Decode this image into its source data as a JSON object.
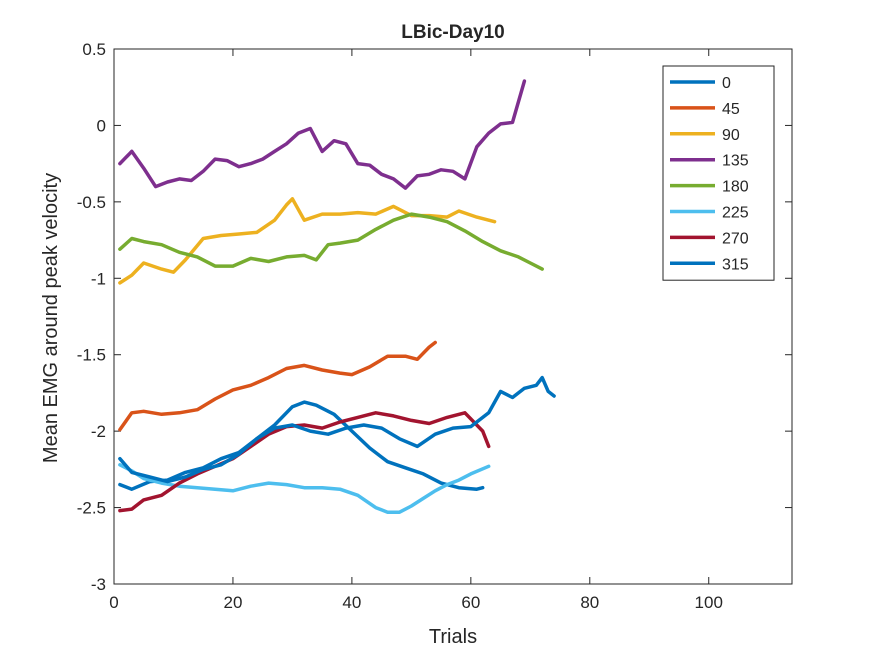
{
  "chart_data": {
    "type": "line",
    "title": "LBic-Day10",
    "xlabel": "Trials",
    "ylabel": "Mean EMG around peak velocity",
    "xlim": [
      0,
      114
    ],
    "ylim": [
      -3,
      0.5
    ],
    "xticks": [
      0,
      20,
      40,
      60,
      80,
      100
    ],
    "yticks": [
      -3,
      -2.5,
      -2,
      -1.5,
      -1,
      -0.5,
      0,
      0.5
    ],
    "xtick_labels": [
      "0",
      "20",
      "40",
      "60",
      "80",
      "100"
    ],
    "ytick_labels": [
      "-3",
      "-2.5",
      "-2",
      "-1.5",
      "-1",
      "-0.5",
      "0",
      "0.5"
    ],
    "grid": false,
    "legend_position": "top-right",
    "series": [
      {
        "name": "0",
        "color": "#0072BD",
        "x": [
          1,
          3,
          6,
          9,
          12,
          15,
          18,
          21,
          24,
          27,
          30,
          32,
          34,
          37,
          40,
          43,
          46,
          49,
          52,
          55,
          58,
          61,
          62
        ],
        "y": [
          -2.35,
          -2.38,
          -2.33,
          -2.32,
          -2.27,
          -2.24,
          -2.18,
          -2.14,
          -2.05,
          -1.96,
          -1.84,
          -1.81,
          -1.83,
          -1.89,
          -2.0,
          -2.11,
          -2.2,
          -2.24,
          -2.28,
          -2.34,
          -2.37,
          -2.38,
          -2.37
        ]
      },
      {
        "name": "45",
        "color": "#D95319",
        "x": [
          1,
          3,
          5,
          8,
          11,
          14,
          17,
          20,
          23,
          26,
          29,
          32,
          35,
          38,
          40,
          43,
          46,
          49,
          51,
          53,
          54
        ],
        "y": [
          -1.99,
          -1.88,
          -1.87,
          -1.89,
          -1.88,
          -1.86,
          -1.79,
          -1.73,
          -1.7,
          -1.65,
          -1.59,
          -1.57,
          -1.6,
          -1.62,
          -1.63,
          -1.58,
          -1.51,
          -1.51,
          -1.53,
          -1.45,
          -1.42
        ]
      },
      {
        "name": "90",
        "color": "#EDB120",
        "x": [
          1,
          3,
          5,
          8,
          10,
          12,
          15,
          18,
          21,
          24,
          27,
          29,
          30,
          32,
          35,
          38,
          41,
          44,
          47,
          50,
          53,
          56,
          58,
          61,
          64
        ],
        "y": [
          -1.03,
          -0.98,
          -0.9,
          -0.94,
          -0.96,
          -0.88,
          -0.74,
          -0.72,
          -0.71,
          -0.7,
          -0.62,
          -0.52,
          -0.48,
          -0.62,
          -0.58,
          -0.58,
          -0.57,
          -0.58,
          -0.53,
          -0.59,
          -0.59,
          -0.6,
          -0.56,
          -0.6,
          -0.63
        ]
      },
      {
        "name": "135",
        "color": "#7E2F8E",
        "x": [
          1,
          3,
          5,
          7,
          9,
          11,
          13,
          15,
          17,
          19,
          21,
          23,
          25,
          27,
          29,
          31,
          33,
          35,
          37,
          39,
          41,
          43,
          45,
          47,
          49,
          51,
          53,
          55,
          57,
          59,
          61,
          63,
          65,
          67,
          69
        ],
        "y": [
          -0.25,
          -0.17,
          -0.28,
          -0.4,
          -0.37,
          -0.35,
          -0.36,
          -0.3,
          -0.22,
          -0.23,
          -0.27,
          -0.25,
          -0.22,
          -0.17,
          -0.12,
          -0.05,
          -0.02,
          -0.17,
          -0.1,
          -0.12,
          -0.25,
          -0.26,
          -0.32,
          -0.35,
          -0.41,
          -0.33,
          -0.32,
          -0.29,
          -0.3,
          -0.35,
          -0.14,
          -0.05,
          0.01,
          0.02,
          0.29
        ]
      },
      {
        "name": "180",
        "color": "#77AC30",
        "x": [
          1,
          3,
          5,
          8,
          11,
          14,
          17,
          20,
          23,
          26,
          29,
          32,
          34,
          36,
          38,
          41,
          44,
          47,
          50,
          53,
          56,
          59,
          62,
          65,
          68,
          70,
          72
        ],
        "y": [
          -0.81,
          -0.74,
          -0.76,
          -0.78,
          -0.83,
          -0.86,
          -0.92,
          -0.92,
          -0.87,
          -0.89,
          -0.86,
          -0.85,
          -0.88,
          -0.78,
          -0.77,
          -0.75,
          -0.68,
          -0.62,
          -0.58,
          -0.6,
          -0.63,
          -0.69,
          -0.76,
          -0.82,
          -0.86,
          -0.9,
          -0.94
        ]
      },
      {
        "name": "225",
        "color": "#4DBEEE",
        "x": [
          1,
          3,
          5,
          8,
          11,
          14,
          17,
          20,
          23,
          26,
          29,
          32,
          35,
          38,
          41,
          44,
          46,
          48,
          50,
          52,
          54,
          56,
          58,
          60,
          63
        ],
        "y": [
          -2.22,
          -2.26,
          -2.31,
          -2.34,
          -2.36,
          -2.37,
          -2.38,
          -2.39,
          -2.36,
          -2.34,
          -2.35,
          -2.37,
          -2.37,
          -2.38,
          -2.42,
          -2.5,
          -2.53,
          -2.53,
          -2.49,
          -2.44,
          -2.39,
          -2.35,
          -2.32,
          -2.28,
          -2.23
        ]
      },
      {
        "name": "270",
        "color": "#A2142F",
        "x": [
          1,
          3,
          5,
          8,
          11,
          14,
          17,
          20,
          23,
          26,
          29,
          32,
          35,
          38,
          41,
          44,
          47,
          50,
          53,
          56,
          59,
          62,
          63
        ],
        "y": [
          -2.52,
          -2.51,
          -2.45,
          -2.42,
          -2.34,
          -2.28,
          -2.23,
          -2.18,
          -2.1,
          -2.02,
          -1.97,
          -1.96,
          -1.98,
          -1.94,
          -1.91,
          -1.88,
          -1.9,
          -1.93,
          -1.95,
          -1.91,
          -1.88,
          -2.0,
          -2.1
        ]
      },
      {
        "name": "315",
        "color": "#0072BD",
        "x": [
          1,
          3,
          6,
          9,
          12,
          15,
          18,
          21,
          24,
          27,
          30,
          33,
          36,
          39,
          42,
          45,
          48,
          51,
          54,
          57,
          60,
          63,
          65,
          67,
          69,
          71,
          72,
          73,
          74
        ],
        "y": [
          -2.18,
          -2.27,
          -2.3,
          -2.33,
          -2.3,
          -2.25,
          -2.22,
          -2.15,
          -2.05,
          -1.98,
          -1.96,
          -2.0,
          -2.02,
          -1.98,
          -1.96,
          -1.98,
          -2.05,
          -2.1,
          -2.02,
          -1.98,
          -1.97,
          -1.88,
          -1.74,
          -1.78,
          -1.72,
          -1.7,
          -1.65,
          -1.74,
          -1.77
        ]
      }
    ]
  }
}
